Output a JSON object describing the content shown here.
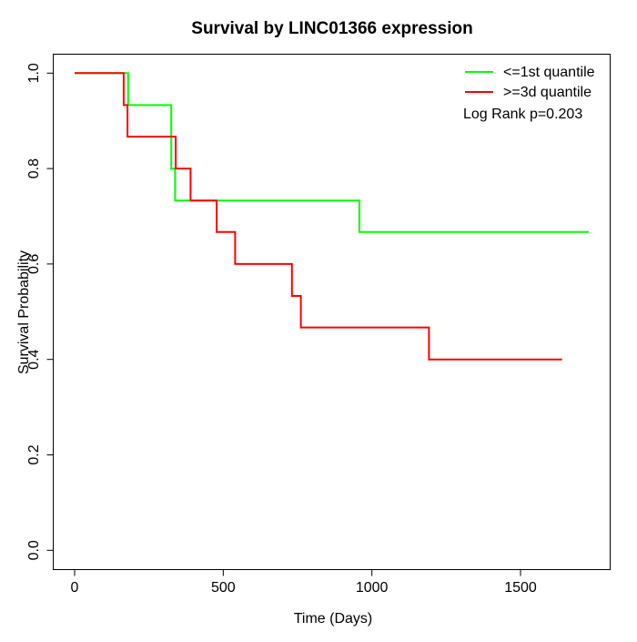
{
  "title": "Survival by LINC01366 expression",
  "chart_data": {
    "type": "line",
    "subtype": "kaplan-meier-step",
    "title": "Survival by LINC01366 expression",
    "xlabel": "Time (Days)",
    "ylabel": "Survival Probability",
    "xlim": [
      0,
      1750
    ],
    "ylim": [
      0.0,
      1.0
    ],
    "x_ticks": [
      0,
      500,
      1000,
      1500
    ],
    "y_ticks": [
      0.0,
      0.2,
      0.4,
      0.6,
      0.8,
      1.0
    ],
    "grid": false,
    "legend_position": "top-right",
    "annotation": "Log Rank p=0.203",
    "series": [
      {
        "name": "<=1st quantile",
        "color": "#00ff00",
        "points": [
          [
            0,
            1.0
          ],
          [
            180,
            0.933
          ],
          [
            325,
            0.8
          ],
          [
            338,
            0.733
          ],
          [
            958,
            0.667
          ]
        ],
        "end_time": 1730
      },
      {
        "name": ">=3d quantile",
        "color": "#ff0000",
        "points": [
          [
            0,
            1.0
          ],
          [
            165,
            0.933
          ],
          [
            178,
            0.867
          ],
          [
            340,
            0.8
          ],
          [
            390,
            0.733
          ],
          [
            478,
            0.667
          ],
          [
            540,
            0.6
          ],
          [
            731,
            0.533
          ],
          [
            761,
            0.467
          ],
          [
            1192,
            0.4
          ]
        ],
        "end_time": 1640
      }
    ]
  },
  "legend": {
    "items": [
      {
        "label": "<=1st quantile",
        "color": "#00ff00"
      },
      {
        "label": ">=3d quantile",
        "color": "#ff0000"
      }
    ],
    "annotation": "Log Rank p=0.203"
  }
}
